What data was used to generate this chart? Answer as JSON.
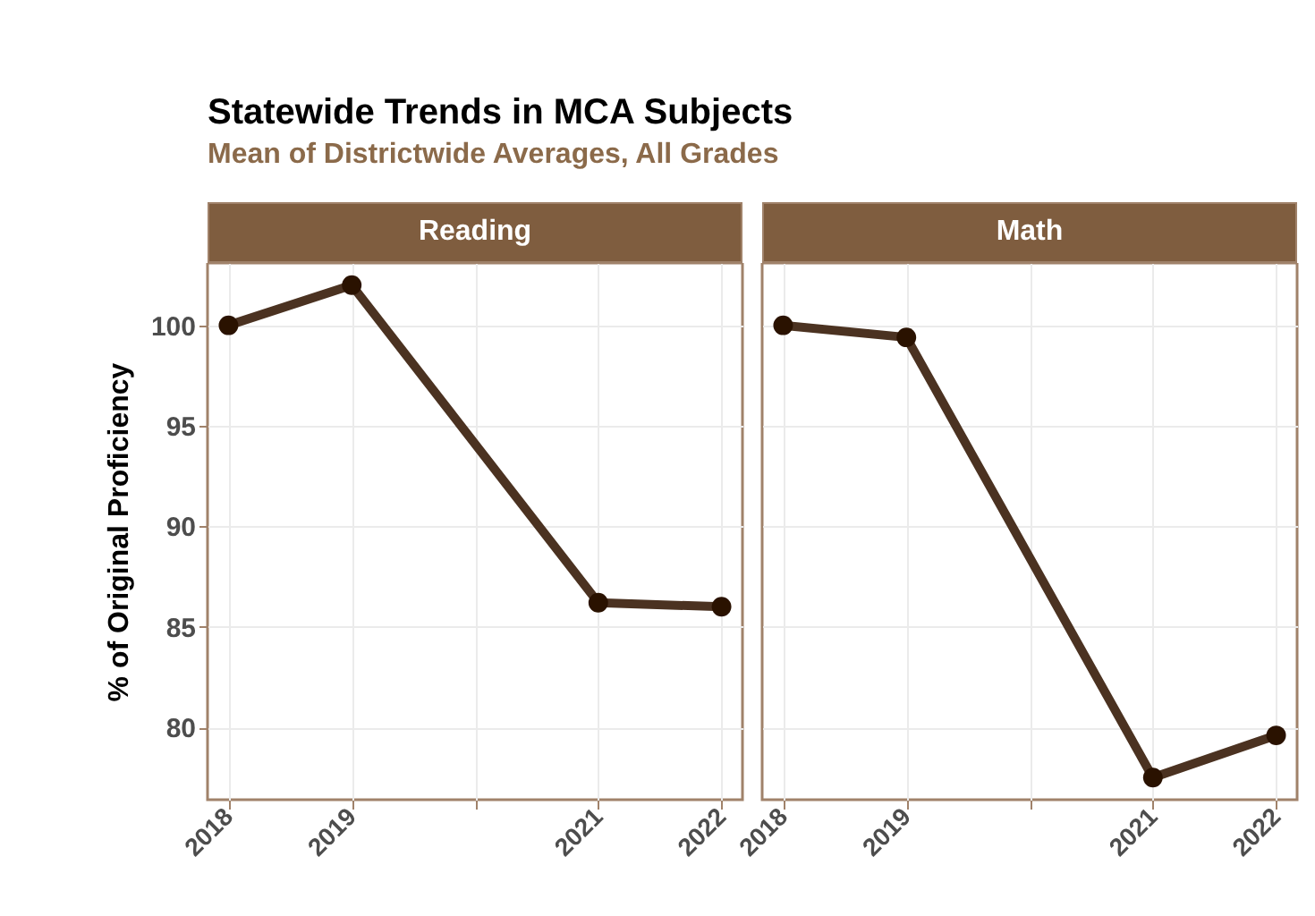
{
  "chart_data": [
    {
      "type": "other",
      "title": "Statewide Trends in MCA Subjects",
      "subtitle": "Mean of Districtwide Averages, All Grades"
    },
    {
      "type": "line",
      "title": "Reading",
      "ylabel": "% of Original Proficiency",
      "x": [
        2018,
        2019,
        2021,
        2022
      ],
      "series": [
        {
          "color": "#4b3221",
          "values": [
            100,
            102.0,
            86.2,
            86.0
          ]
        }
      ],
      "xlim": [
        2017.83,
        2022.17
      ],
      "xticks": [
        2018,
        2019,
        {
          "value": 2020,
          "label": null
        },
        2021,
        2022
      ],
      "ylim": [
        76.4,
        103.1
      ],
      "yticks": [
        80,
        85,
        90,
        95,
        100
      ],
      "grid": true,
      "marker": "circle"
    },
    {
      "type": "line",
      "title": "Math",
      "x": [
        2018,
        2019,
        2021,
        2022
      ],
      "series": [
        {
          "color": "#4b3221",
          "values": [
            100,
            99.4,
            77.5,
            79.6
          ]
        }
      ],
      "xlim": [
        2017.83,
        2022.17
      ],
      "xticks": [
        2018,
        2019,
        {
          "value": 2020,
          "label": null
        },
        2021,
        2022
      ],
      "ylim": [
        76.4,
        103.1
      ],
      "yticks": [
        80,
        85,
        90,
        95,
        100
      ],
      "grid": true,
      "marker": "circle",
      "tick_labels": "x"
    }
  ]
}
